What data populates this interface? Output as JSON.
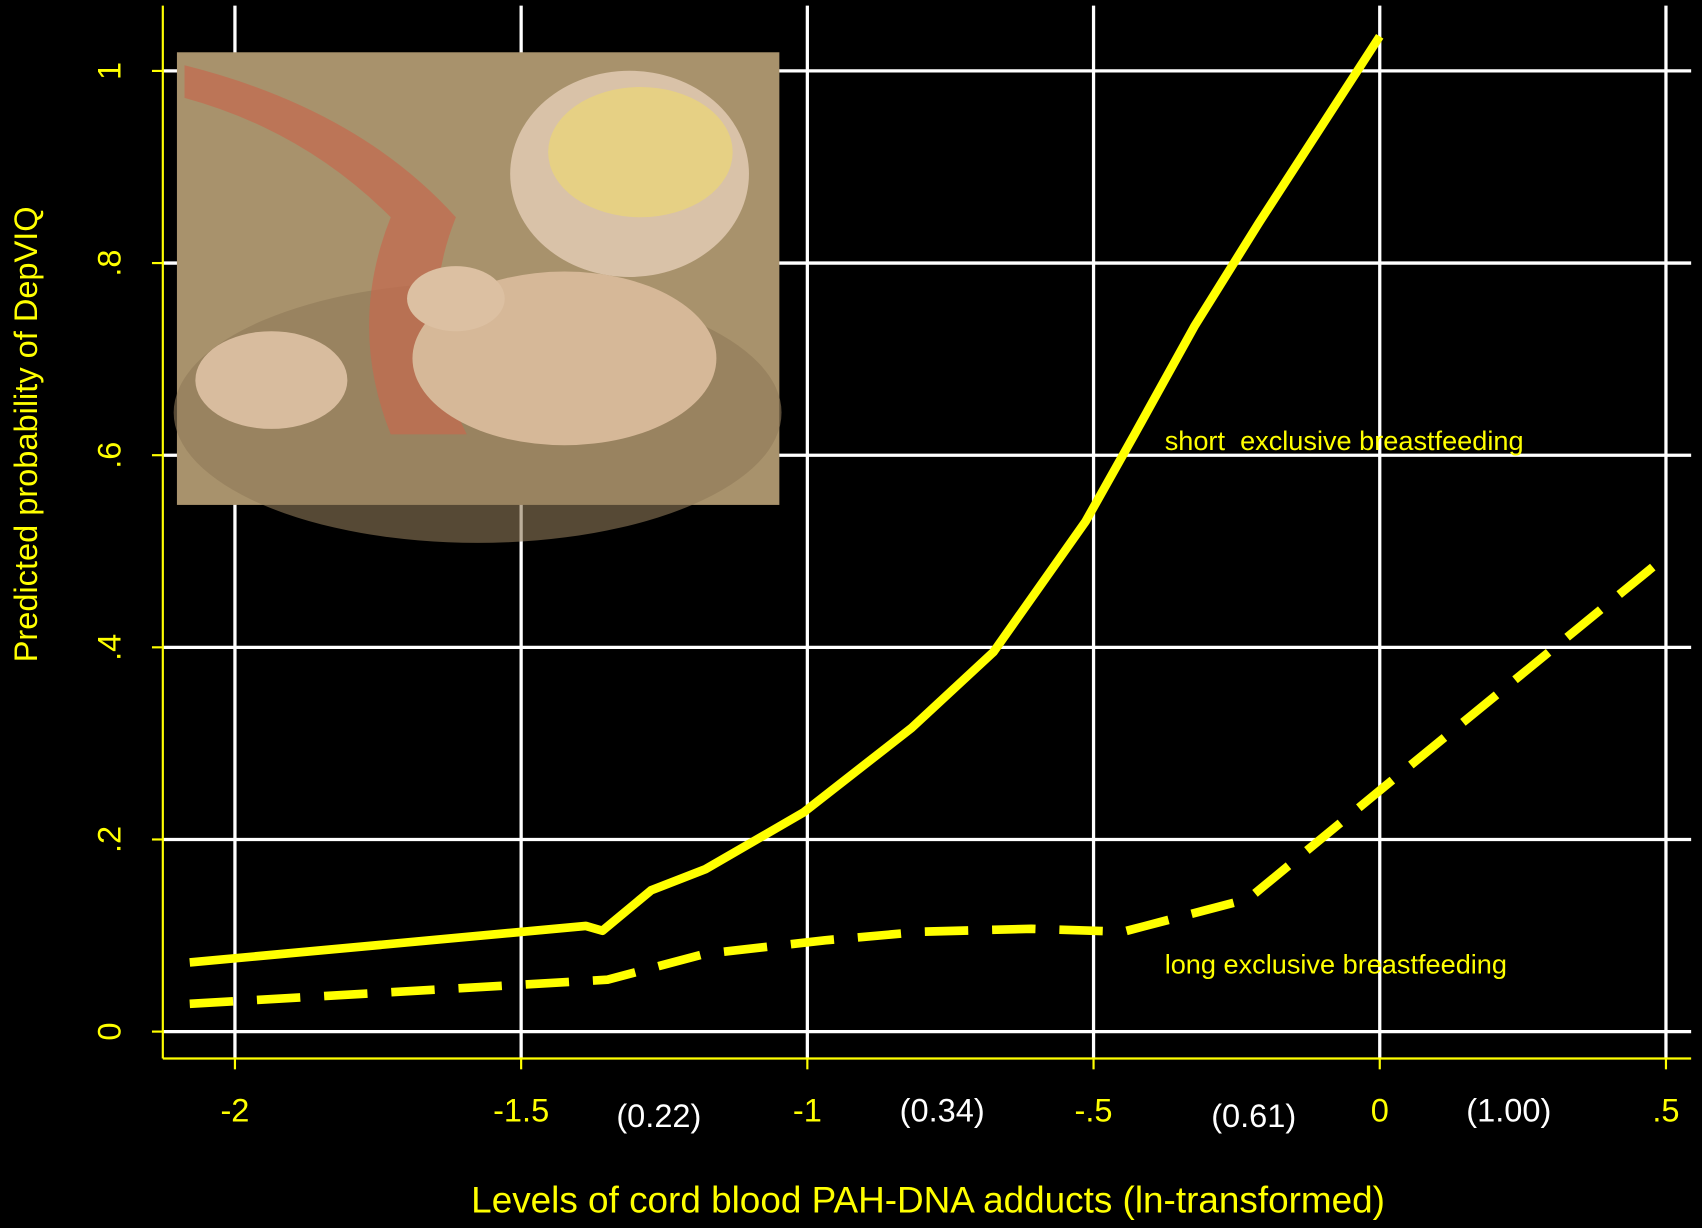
{
  "chart_data": {
    "type": "line",
    "xlabel": "Levels of cord blood PAH-DNA  adducts  (ln-transformed)",
    "ylabel": "Predicted probability of DepVIQ",
    "xlim": [
      -2.126,
      0.544
    ],
    "ylim": [
      -0.028,
      1.068
    ],
    "xticks": [
      -2,
      -1.5,
      -1,
      {
        "value": -0.5,
        "label": "-.5"
      },
      0,
      {
        "value": 0.5,
        "label": ".5"
      }
    ],
    "yticks": [
      0,
      {
        "value": 0.2,
        "label": ".2"
      },
      {
        "value": 0.4,
        "label": ".4"
      },
      {
        "value": 0.6,
        "label": ".6"
      },
      {
        "value": 0.8,
        "label": ".8"
      },
      1
    ],
    "grid": true,
    "annotations": [
      "(0.22)",
      "(0.34)",
      "(0.61)",
      "(1.00)"
    ],
    "series": [
      {
        "name": "short  exclusive breastfeeding",
        "color": "#ffff00",
        "line_style": "solid",
        "x": [
          -2.079,
          -1.387,
          -1.358,
          -1.273,
          -1.178,
          -1.007,
          -0.818,
          -0.675,
          -0.514,
          -0.429,
          -0.324,
          -0.211,
          0
        ],
        "values": [
          0.072,
          0.11,
          0.105,
          0.147,
          0.169,
          0.228,
          0.316,
          0.395,
          0.531,
          0.621,
          0.734,
          0.842,
          1.036
        ]
      },
      {
        "name": "long exclusive breastfeeding",
        "color": "#ffff00",
        "line_style": "dashed",
        "x": [
          -2.079,
          -1.349,
          -1.178,
          -0.969,
          -0.799,
          -0.609,
          -0.448,
          -0.23,
          0,
          0.482
        ],
        "values": [
          0.029,
          0.054,
          0.081,
          0.095,
          0.104,
          0.107,
          0.104,
          0.138,
          0.251,
          0.486
        ]
      }
    ]
  }
}
